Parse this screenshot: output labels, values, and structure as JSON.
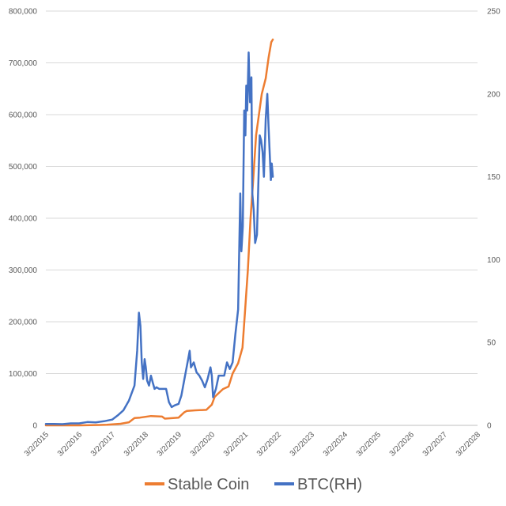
{
  "chart_data": {
    "type": "line",
    "title": "",
    "xlabel": "",
    "ylabel": "",
    "y2label": "",
    "x_tick_labels": [
      "3/2/2015",
      "3/2/2016",
      "3/2/2017",
      "3/2/2018",
      "3/2/2019",
      "3/2/2020",
      "3/2/2021",
      "3/2/2022",
      "3/2/2023",
      "3/2/2024",
      "3/2/2025",
      "3/2/2026",
      "3/2/2027",
      "3/2/2028"
    ],
    "xlim": [
      "2015-03-02",
      "2028-03-02"
    ],
    "ylim": [
      0,
      800000
    ],
    "y_tick_labels": [
      "0",
      "100,000",
      "200,000",
      "300,000",
      "400,000",
      "500,000",
      "600,000",
      "700,000",
      "800,000"
    ],
    "y2lim": [
      0,
      250
    ],
    "y2_tick_labels": [
      "0",
      "50",
      "100",
      "150",
      "200",
      "250"
    ],
    "grid": true,
    "legend": "bottom",
    "colors": {
      "stable": "#ED7D31",
      "btc": "#4472C4",
      "grid": "#D9D9D9",
      "text": "#595959"
    },
    "series": [
      {
        "name": "Stable Coin",
        "axis": "left",
        "color": "#ED7D31",
        "points": [
          [
            "2015-03-02",
            0
          ],
          [
            "2016-03-02",
            0
          ],
          [
            "2017-01-01",
            1000
          ],
          [
            "2017-03-01",
            2000
          ],
          [
            "2017-06-01",
            3000
          ],
          [
            "2017-09-01",
            6000
          ],
          [
            "2017-11-01",
            14000
          ],
          [
            "2018-01-01",
            15000
          ],
          [
            "2018-05-01",
            18000
          ],
          [
            "2018-09-01",
            17000
          ],
          [
            "2018-10-01",
            13000
          ],
          [
            "2019-03-01",
            15000
          ],
          [
            "2019-05-01",
            25000
          ],
          [
            "2019-06-01",
            28000
          ],
          [
            "2019-09-01",
            29000
          ],
          [
            "2020-01-01",
            30000
          ],
          [
            "2020-03-01",
            40000
          ],
          [
            "2020-04-01",
            55000
          ],
          [
            "2020-07-01",
            70000
          ],
          [
            "2020-09-01",
            75000
          ],
          [
            "2020-10-15",
            100000
          ],
          [
            "2020-12-15",
            120000
          ],
          [
            "2021-02-01",
            150000
          ],
          [
            "2021-03-01",
            220000
          ],
          [
            "2021-04-01",
            300000
          ],
          [
            "2021-05-01",
            400000
          ],
          [
            "2021-06-01",
            480000
          ],
          [
            "2021-07-01",
            560000
          ],
          [
            "2021-08-01",
            600000
          ],
          [
            "2021-09-01",
            640000
          ],
          [
            "2021-10-15",
            670000
          ],
          [
            "2021-11-15",
            710000
          ],
          [
            "2021-12-15",
            740000
          ],
          [
            "2022-01-01",
            745000
          ]
        ]
      },
      {
        "name": "BTC(RH)",
        "axis": "right",
        "color": "#4472C4",
        "points": [
          [
            "2015-03-02",
            0.8
          ],
          [
            "2015-06-01",
            0.8
          ],
          [
            "2015-09-01",
            0.7
          ],
          [
            "2015-12-01",
            1.2
          ],
          [
            "2016-03-02",
            1.2
          ],
          [
            "2016-06-01",
            2
          ],
          [
            "2016-09-01",
            1.8
          ],
          [
            "2016-12-01",
            2.5
          ],
          [
            "2017-03-01",
            3.5
          ],
          [
            "2017-05-01",
            6
          ],
          [
            "2017-07-01",
            9
          ],
          [
            "2017-09-01",
            15
          ],
          [
            "2017-11-01",
            24
          ],
          [
            "2017-12-01",
            45
          ],
          [
            "2017-12-20",
            68
          ],
          [
            "2018-01-05",
            60
          ],
          [
            "2018-01-20",
            38
          ],
          [
            "2018-02-05",
            28
          ],
          [
            "2018-02-20",
            40
          ],
          [
            "2018-03-05",
            35
          ],
          [
            "2018-03-20",
            27
          ],
          [
            "2018-04-10",
            24
          ],
          [
            "2018-05-01",
            30
          ],
          [
            "2018-05-20",
            26
          ],
          [
            "2018-06-10",
            22
          ],
          [
            "2018-07-01",
            23
          ],
          [
            "2018-08-01",
            22
          ],
          [
            "2018-09-01",
            22
          ],
          [
            "2018-10-15",
            22
          ],
          [
            "2018-11-15",
            14
          ],
          [
            "2018-12-15",
            11
          ],
          [
            "2019-01-15",
            12
          ],
          [
            "2019-03-01",
            13
          ],
          [
            "2019-04-01",
            18
          ],
          [
            "2019-05-01",
            27
          ],
          [
            "2019-06-15",
            40
          ],
          [
            "2019-07-01",
            45
          ],
          [
            "2019-07-15",
            35
          ],
          [
            "2019-08-15",
            38
          ],
          [
            "2019-09-15",
            32
          ],
          [
            "2019-10-15",
            30
          ],
          [
            "2019-11-15",
            27
          ],
          [
            "2019-12-15",
            23
          ],
          [
            "2020-01-15",
            28
          ],
          [
            "2020-02-15",
            35
          ],
          [
            "2020-03-01",
            30
          ],
          [
            "2020-03-15",
            17
          ],
          [
            "2020-04-15",
            22
          ],
          [
            "2020-05-15",
            30
          ],
          [
            "2020-06-15",
            30
          ],
          [
            "2020-07-15",
            30
          ],
          [
            "2020-08-15",
            38
          ],
          [
            "2020-09-15",
            34
          ],
          [
            "2020-10-15",
            38
          ],
          [
            "2020-11-15",
            55
          ],
          [
            "2020-12-15",
            70
          ],
          [
            "2021-01-08",
            140
          ],
          [
            "2021-01-20",
            105
          ],
          [
            "2021-02-05",
            120
          ],
          [
            "2021-02-20",
            190
          ],
          [
            "2021-03-05",
            175
          ],
          [
            "2021-03-15",
            205
          ],
          [
            "2021-03-25",
            190
          ],
          [
            "2021-04-10",
            225
          ],
          [
            "2021-04-25",
            195
          ],
          [
            "2021-05-10",
            210
          ],
          [
            "2021-05-20",
            140
          ],
          [
            "2021-06-05",
            130
          ],
          [
            "2021-06-20",
            110
          ],
          [
            "2021-07-10",
            115
          ],
          [
            "2021-07-25",
            145
          ],
          [
            "2021-08-10",
            175
          ],
          [
            "2021-08-25",
            172
          ],
          [
            "2021-09-10",
            165
          ],
          [
            "2021-09-25",
            150
          ],
          [
            "2021-10-15",
            185
          ],
          [
            "2021-11-01",
            200
          ],
          [
            "2021-11-15",
            180
          ],
          [
            "2021-12-01",
            160
          ],
          [
            "2021-12-10",
            148
          ],
          [
            "2021-12-20",
            158
          ],
          [
            "2022-01-01",
            150
          ]
        ]
      }
    ]
  }
}
